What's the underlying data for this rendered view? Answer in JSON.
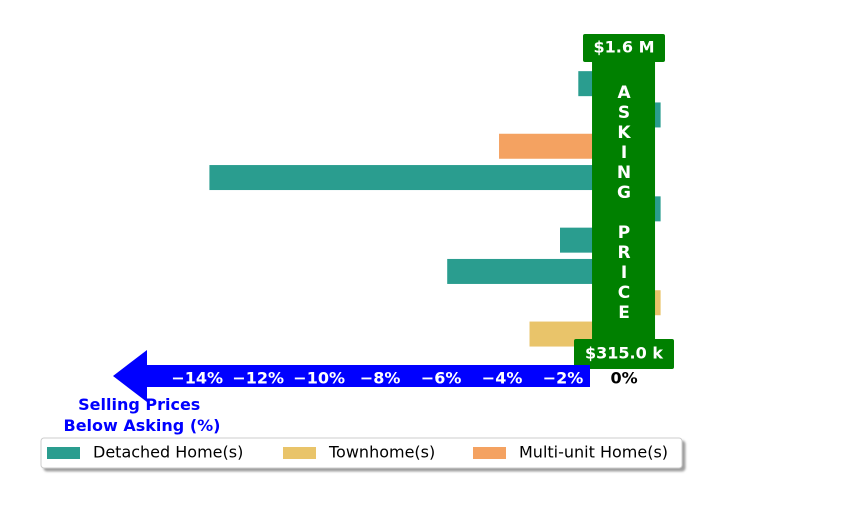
{
  "chart_data": {
    "type": "bar",
    "orientation": "horizontal",
    "categories": [
      null,
      null,
      null,
      null,
      null,
      null,
      null,
      null,
      null
    ],
    "series": [
      {
        "name": "Detached Home(s)",
        "color": "#2a9d8f",
        "values": [
          -1.5,
          1.2,
          null,
          -13.6,
          1.2,
          -2.1,
          -5.8,
          null,
          null
        ]
      },
      {
        "name": "Townhome(s)",
        "color": "#e9c46a",
        "values": [
          null,
          null,
          null,
          null,
          null,
          null,
          null,
          1.2,
          -3.1
        ]
      },
      {
        "name": "Multi-unit Home(s)",
        "color": "#f4a261",
        "values": [
          null,
          null,
          -4.1,
          null,
          null,
          null,
          null,
          null,
          null
        ]
      }
    ],
    "xlim": [
      -16.5,
      2
    ],
    "xticks": [
      {
        "value": -14,
        "label": "−14%"
      },
      {
        "value": -12,
        "label": "−12%"
      },
      {
        "value": -10,
        "label": "−10%"
      },
      {
        "value": -8,
        "label": "−8%"
      },
      {
        "value": -6,
        "label": "−6%"
      },
      {
        "value": -4,
        "label": "−4%"
      },
      {
        "value": -2,
        "label": "−2%"
      },
      {
        "value": 0,
        "label": "0%"
      }
    ],
    "x_label": "Selling Prices\nBelow Asking (%)",
    "annotation_band": "ASKING PRICE",
    "top_label": "$1.6 M",
    "bottom_label": "$315.0 k",
    "band_color": "#008000",
    "arrow_color": "#0000ff",
    "legend": "lower-left"
  }
}
